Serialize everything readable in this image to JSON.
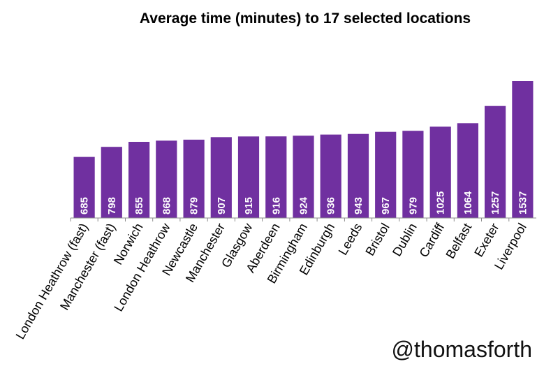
{
  "chart_data": {
    "type": "bar",
    "title": "Average time (minutes) to 17 selected locations",
    "categories": [
      "London Heathrow (fast)",
      "Manchester (fast)",
      "Norwich",
      "London Heathrow",
      "Newcastle",
      "Manchester",
      "Glasgow",
      "Aberdeen",
      "Birmingham",
      "Edinburgh",
      "Leeds",
      "Bristol",
      "Dublin",
      "Cardiff",
      "Belfast",
      "Exeter",
      "Liverpool"
    ],
    "values": [
      685,
      798,
      855,
      868,
      879,
      907,
      915,
      916,
      924,
      936,
      943,
      967,
      979,
      1025,
      1064,
      1257,
      1537
    ],
    "ylim": [
      0,
      1537
    ],
    "grid": false,
    "legend": "none",
    "bar_color": "#7030a0",
    "value_label_color": "#ffffff"
  },
  "credit": "@thomasforth"
}
